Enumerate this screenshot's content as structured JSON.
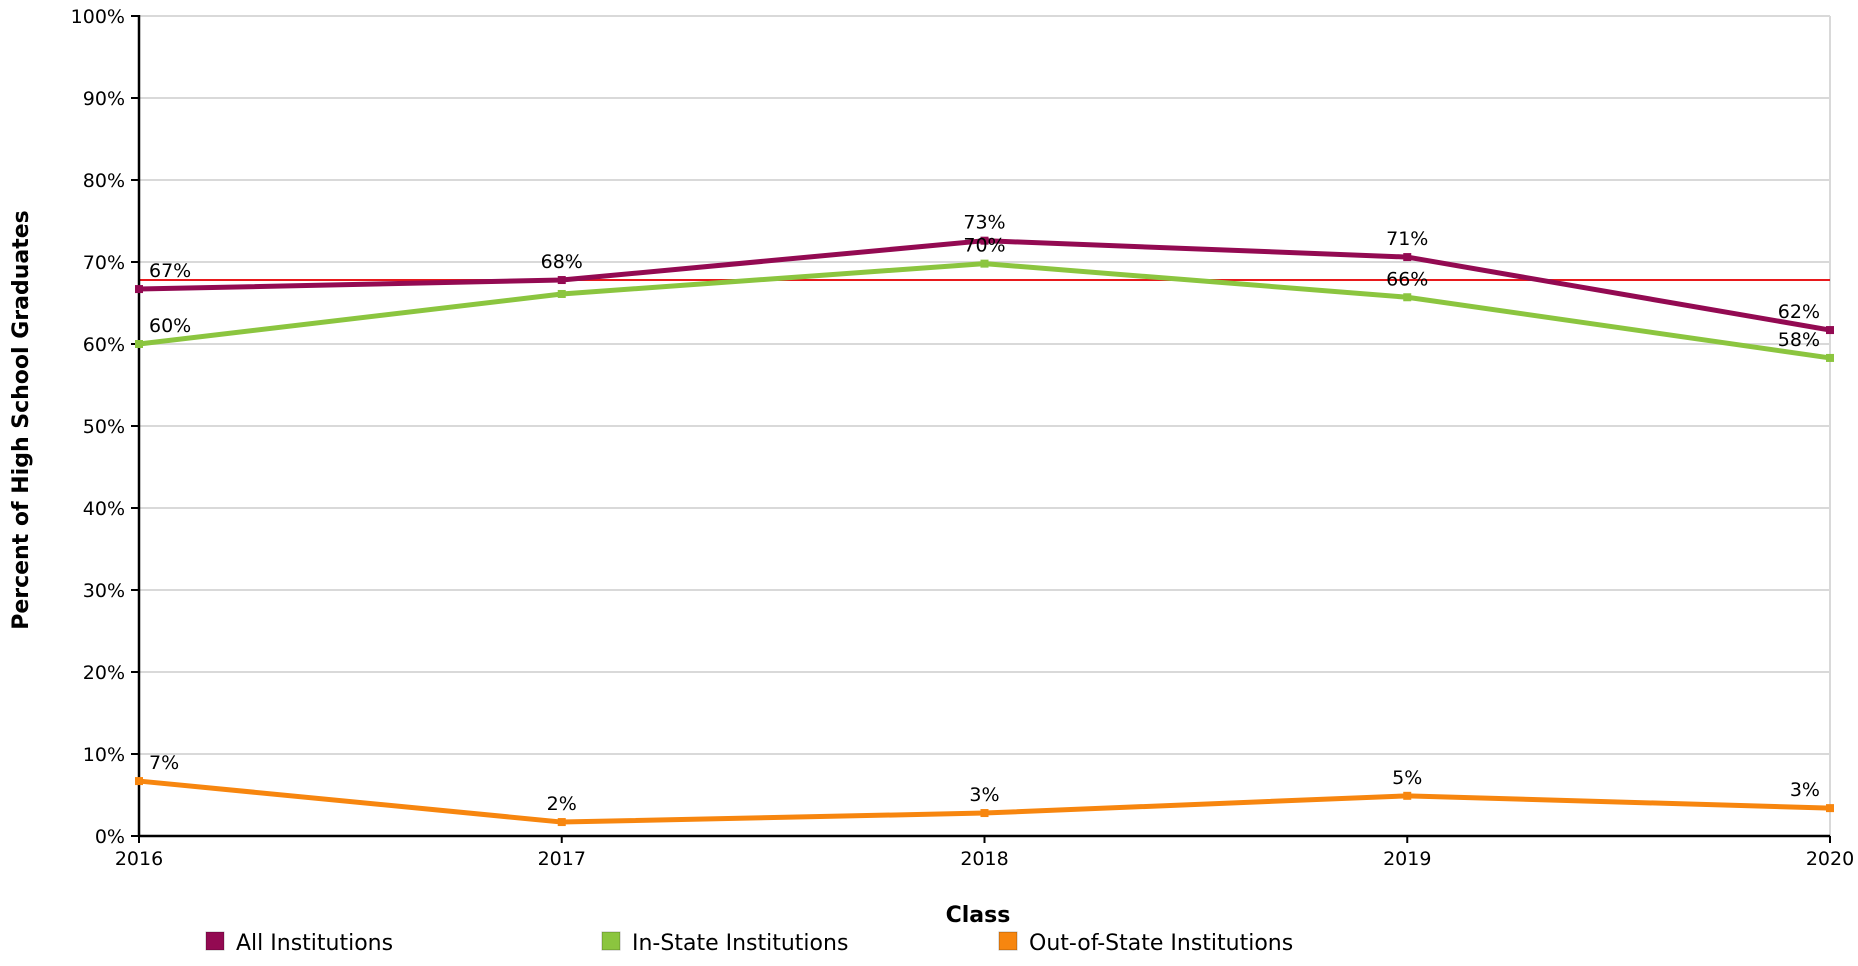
{
  "chart_data": {
    "type": "line",
    "title": "",
    "xlabel": "Class",
    "ylabel": "Percent of High School Graduates",
    "categories": [
      "2016",
      "2017",
      "2018",
      "2019",
      "2020"
    ],
    "ylim": [
      0,
      100
    ],
    "yticks": [
      0,
      10,
      20,
      30,
      40,
      50,
      60,
      70,
      80,
      90,
      100
    ],
    "ytick_labels": [
      "0%",
      "10%",
      "20%",
      "30%",
      "40%",
      "50%",
      "60%",
      "70%",
      "80%",
      "90%",
      "100%"
    ],
    "grid": true,
    "legend_position": "bottom",
    "reference_line": {
      "value": 67.8,
      "color": "#e8191c"
    },
    "series": [
      {
        "name": "All Institutions",
        "color": "#930a52",
        "values": [
          66.7,
          67.8,
          72.6,
          70.6,
          61.7
        ],
        "labels": [
          "67%",
          "68%",
          "73%",
          "71%",
          "62%"
        ]
      },
      {
        "name": "In-State Institutions",
        "color": "#8bc53f",
        "values": [
          60.0,
          66.1,
          69.8,
          65.7,
          58.3
        ],
        "labels": [
          "60%",
          "",
          "70%",
          "66%",
          "58%"
        ]
      },
      {
        "name": "Out-of-State Institutions",
        "color": "#f7860f",
        "values": [
          6.7,
          1.7,
          2.8,
          4.9,
          3.4
        ],
        "labels": [
          "7%",
          "2%",
          "3%",
          "5%",
          "3%"
        ]
      }
    ]
  }
}
